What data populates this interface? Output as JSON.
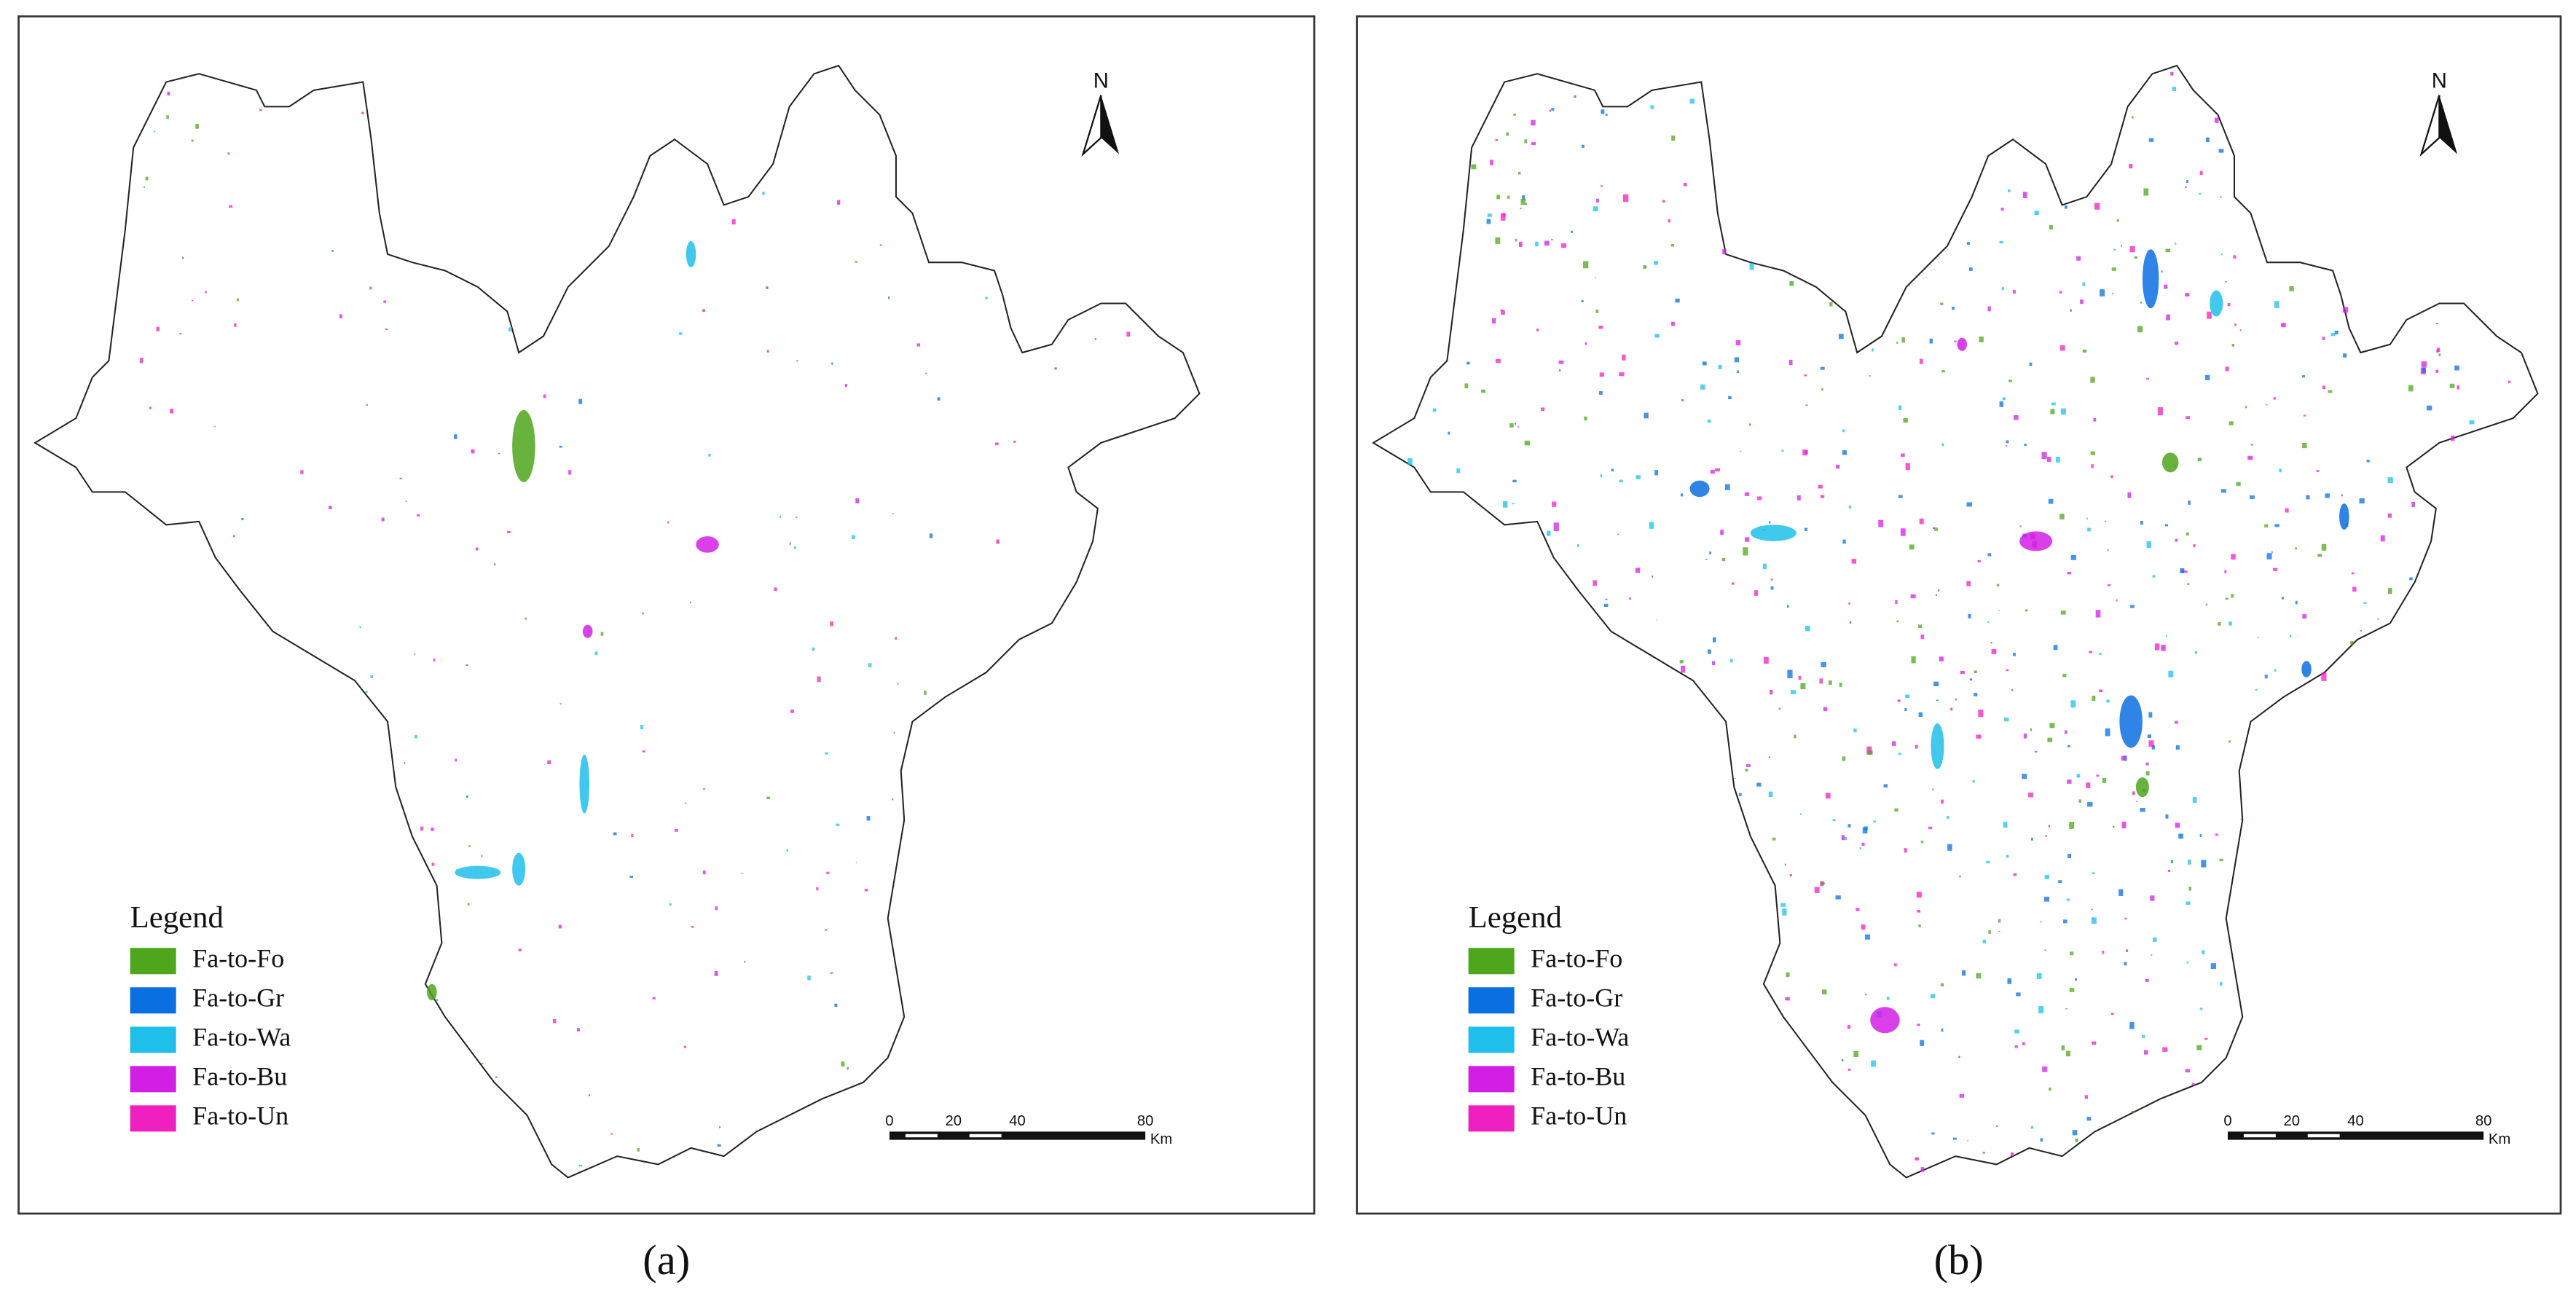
{
  "panels": [
    {
      "label": "(a)",
      "north": "N",
      "legend": {
        "title": "Legend",
        "items": [
          {
            "label": "Fa-to-Fo",
            "color": "#4ea61c"
          },
          {
            "label": "Fa-to-Gr",
            "color": "#0a6fe0"
          },
          {
            "label": "Fa-to-Wa",
            "color": "#1ec0ea"
          },
          {
            "label": "Fa-to-Bu",
            "color": "#d21fe6"
          },
          {
            "label": "Fa-to-Un",
            "color": "#f01fbf"
          }
        ]
      },
      "scale": {
        "ticks": [
          0,
          20,
          40,
          80
        ],
        "unit": "Km"
      }
    },
    {
      "label": "(b)",
      "north": "N",
      "legend": {
        "title": "Legend",
        "items": [
          {
            "label": "Fa-to-Fo",
            "color": "#4ea61c"
          },
          {
            "label": "Fa-to-Gr",
            "color": "#0a6fe0"
          },
          {
            "label": "Fa-to-Wa",
            "color": "#1ec0ea"
          },
          {
            "label": "Fa-to-Bu",
            "color": "#d21fe6"
          },
          {
            "label": "Fa-to-Un",
            "color": "#f01fbf"
          }
        ]
      },
      "scale": {
        "ticks": [
          0,
          20,
          40,
          80
        ],
        "unit": "Km"
      }
    }
  ]
}
